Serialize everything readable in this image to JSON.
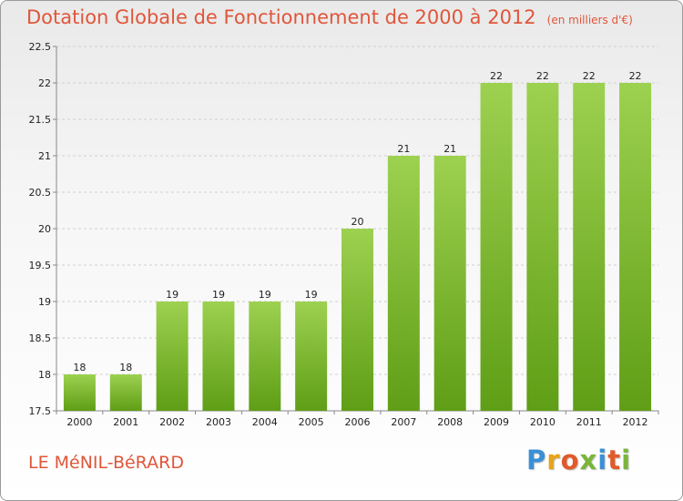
{
  "header": {
    "title": "Dotation Globale de Fonctionnement de 2000 à 2012",
    "subtitle": "(en milliers d'€)"
  },
  "footer": {
    "commune": "LE MéNIL-BéRARD",
    "logo_letters": [
      "P",
      "r",
      "o",
      "x",
      "i",
      "t",
      "i"
    ],
    "logo_colors": [
      "#3b8fd6",
      "#e8a317",
      "#e05a2a",
      "#7ab53a",
      "#3b8fd6",
      "#e05a2a",
      "#7ab53a"
    ]
  },
  "colors": {
    "bar_top": "#9dd150",
    "bar_bottom": "#5f9e16",
    "grid": "#d0d0d0",
    "axis": "#888888"
  },
  "chart_data": {
    "type": "bar",
    "categories": [
      "2000",
      "2001",
      "2002",
      "2003",
      "2004",
      "2005",
      "2006",
      "2007",
      "2008",
      "2009",
      "2010",
      "2011",
      "2012"
    ],
    "values": [
      18,
      18,
      19,
      19,
      19,
      19,
      20,
      21,
      21,
      22,
      22,
      22,
      22
    ],
    "ylim": [
      17.5,
      22.5
    ],
    "yticks": [
      "17.5",
      "18",
      "18.5",
      "19",
      "19.5",
      "20",
      "20.5",
      "21",
      "21.5",
      "22",
      "22.5"
    ],
    "grid": "horizontal dashed",
    "legend": "none"
  }
}
